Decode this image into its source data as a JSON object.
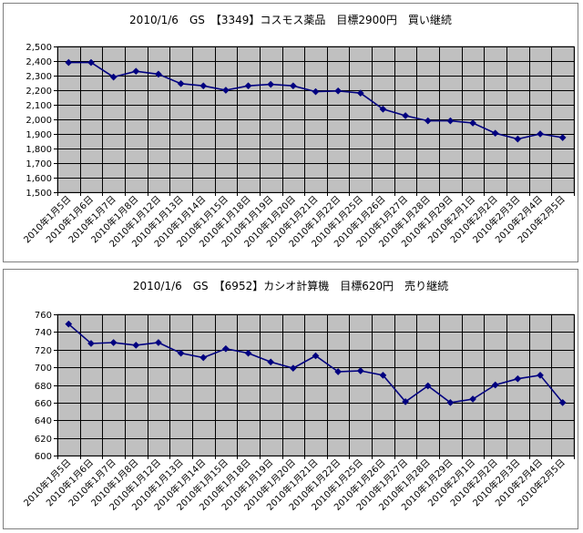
{
  "colors": {
    "plot_background": "#c0c0c0",
    "grid": "#000000",
    "series": "#000080"
  },
  "chart_data": [
    {
      "type": "line",
      "title": "2010/1/6　GS　【3349】コスモス薬品　目標2900円　買い継続",
      "xlabel": "",
      "ylabel": "",
      "ylim": [
        1500,
        2500
      ],
      "ytick_step": 100,
      "ytick_format": "comma",
      "grid": true,
      "legend": "none",
      "categories": [
        "2010年1月5日",
        "2010年1月6日",
        "2010年1月7日",
        "2010年1月8日",
        "2010年1月12日",
        "2010年1月13日",
        "2010年1月14日",
        "2010年1月15日",
        "2010年1月18日",
        "2010年1月19日",
        "2010年1月20日",
        "2010年1月21日",
        "2010年1月22日",
        "2010年1月25日",
        "2010年1月26日",
        "2010年1月27日",
        "2010年1月28日",
        "2010年1月29日",
        "2010年2月1日",
        "2010年2月2日",
        "2010年2月3日",
        "2010年2月4日",
        "2010年2月5日"
      ],
      "series": [
        {
          "values": [
            2390,
            2390,
            2290,
            2330,
            2310,
            2245,
            2230,
            2200,
            2230,
            2240,
            2230,
            2190,
            2195,
            2180,
            2070,
            2025,
            1990,
            1990,
            1975,
            1905,
            1865,
            1900,
            1875
          ]
        }
      ]
    },
    {
      "type": "line",
      "title": "2010/1/6　GS　【6952】カシオ計算機　目標620円　売り継続",
      "xlabel": "",
      "ylabel": "",
      "ylim": [
        600,
        760
      ],
      "ytick_step": 20,
      "ytick_format": "plain",
      "grid": true,
      "legend": "none",
      "categories": [
        "2010年1月5日",
        "2010年1月6日",
        "2010年1月7日",
        "2010年1月8日",
        "2010年1月12日",
        "2010年1月13日",
        "2010年1月14日",
        "2010年1月15日",
        "2010年1月18日",
        "2010年1月19日",
        "2010年1月20日",
        "2010年1月21日",
        "2010年1月22日",
        "2010年1月25日",
        "2010年1月26日",
        "2010年1月27日",
        "2010年1月28日",
        "2010年1月29日",
        "2010年2月1日",
        "2010年2月2日",
        "2010年2月3日",
        "2010年2月4日",
        "2010年2月5日"
      ],
      "series": [
        {
          "values": [
            749,
            727,
            728,
            725,
            728,
            716,
            711,
            721,
            716,
            706,
            699,
            713,
            695,
            696,
            691,
            661,
            679,
            660,
            664,
            680,
            687,
            691,
            660
          ]
        }
      ]
    }
  ]
}
